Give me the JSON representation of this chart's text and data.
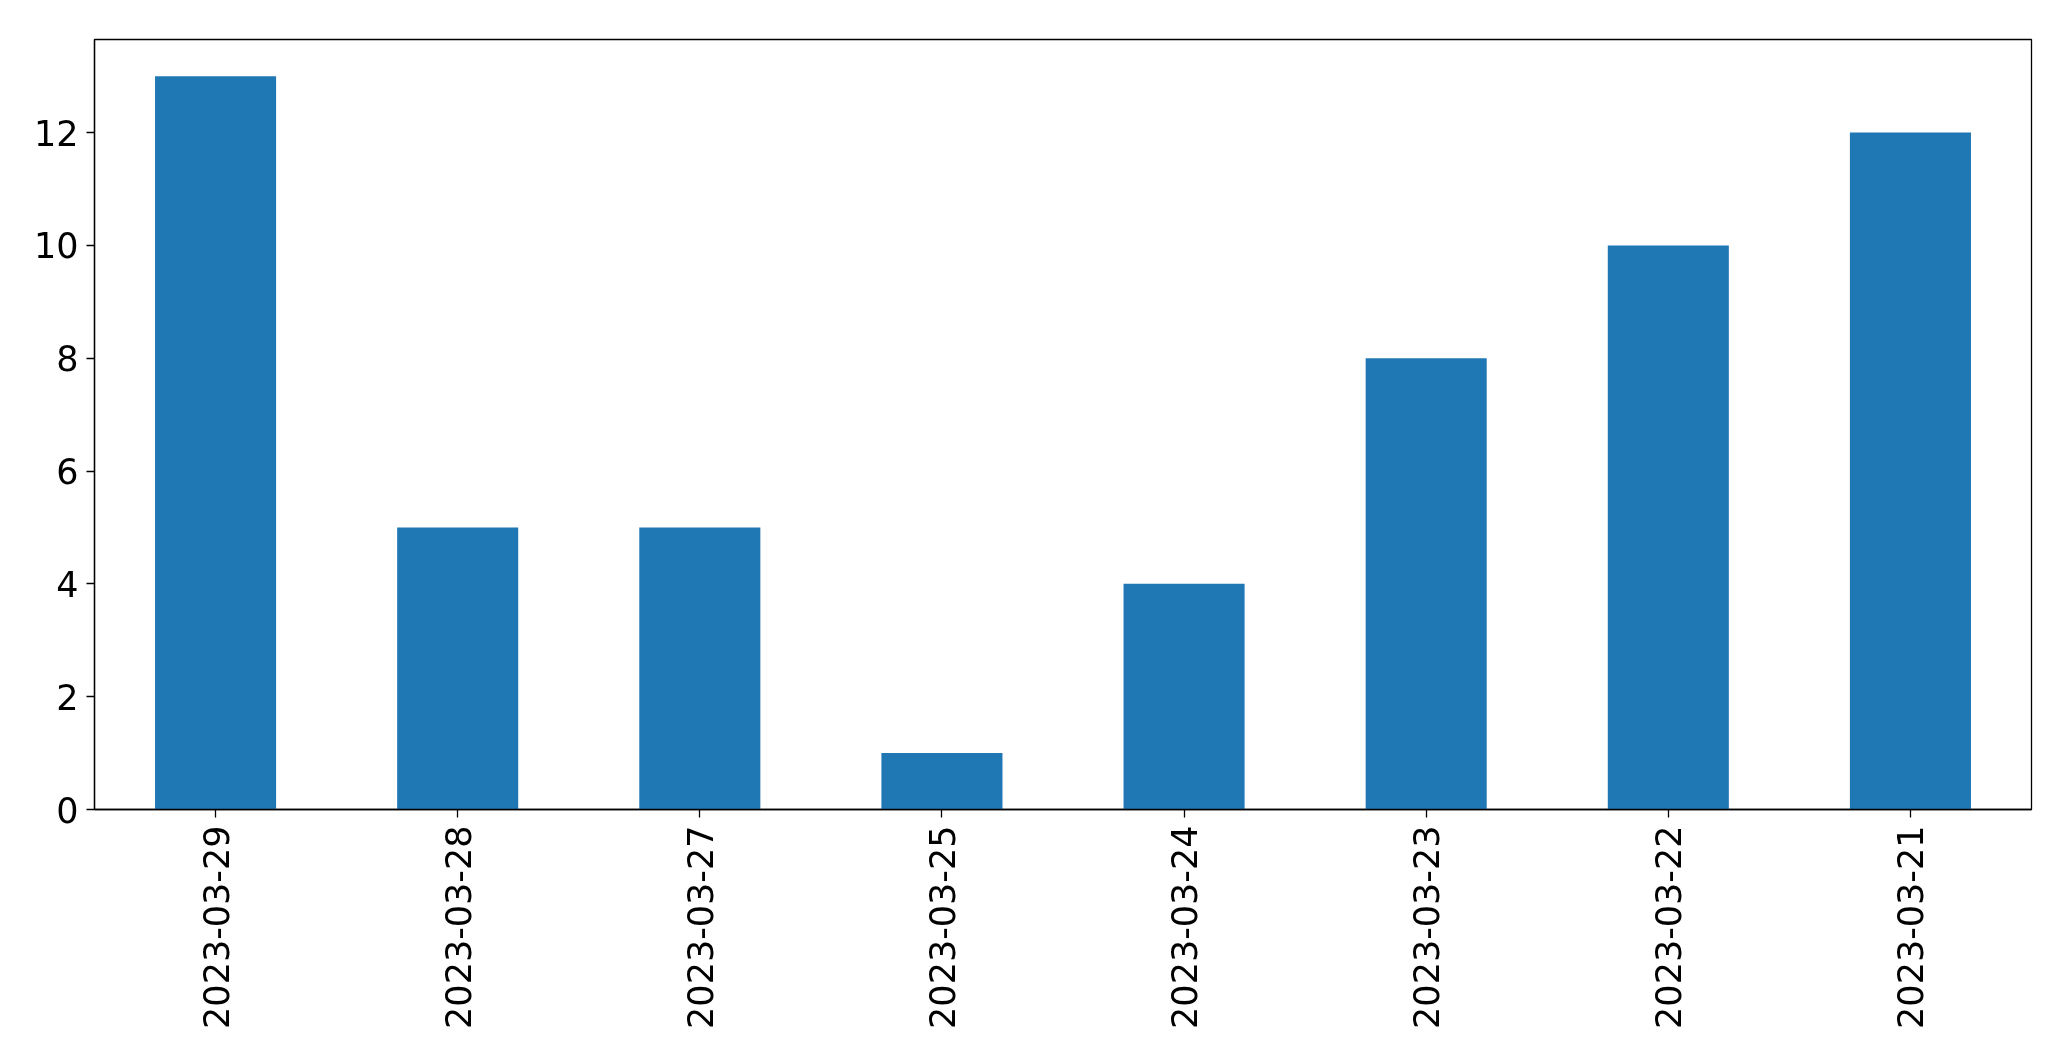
{
  "chart_data": {
    "type": "bar",
    "categories": [
      "2023-03-29",
      "2023-03-28",
      "2023-03-27",
      "2023-03-25",
      "2023-03-24",
      "2023-03-23",
      "2023-03-22",
      "2023-03-21"
    ],
    "values": [
      13,
      5,
      5,
      1,
      4,
      8,
      10,
      12
    ],
    "color": "#1f77b4",
    "ylim": [
      0,
      13.65
    ],
    "yticks": [
      0,
      2,
      4,
      6,
      8,
      10,
      12
    ],
    "grid": false
  }
}
